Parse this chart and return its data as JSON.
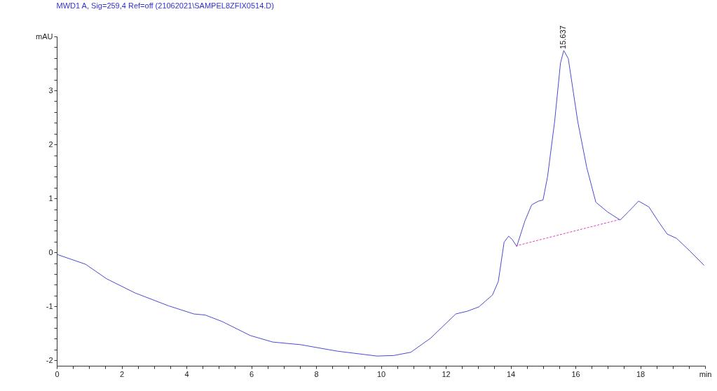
{
  "chart_data": {
    "type": "line",
    "title": "MWD1 A, Sig=259,4 Ref=off (21062021\\SAMPEL8ZFIX0514.D)",
    "xlim": [
      0,
      20
    ],
    "ylim": [
      -2.1,
      4
    ],
    "xticks": [
      0,
      {
        "value": 0.5,
        "label": null
      },
      {
        "value": 1,
        "label": null
      },
      {
        "value": 1.5,
        "label": null
      },
      2,
      {
        "value": 2.5,
        "label": null
      },
      {
        "value": 3,
        "label": null
      },
      {
        "value": 3.5,
        "label": null
      },
      4,
      {
        "value": 4.5,
        "label": null
      },
      {
        "value": 5,
        "label": null
      },
      {
        "value": 5.5,
        "label": null
      },
      6,
      {
        "value": 6.5,
        "label": null
      },
      {
        "value": 7,
        "label": null
      },
      {
        "value": 7.5,
        "label": null
      },
      8,
      {
        "value": 8.5,
        "label": null
      },
      {
        "value": 9,
        "label": null
      },
      {
        "value": 9.5,
        "label": null
      },
      10,
      {
        "value": 10.5,
        "label": null
      },
      {
        "value": 11,
        "label": null
      },
      {
        "value": 11.5,
        "label": null
      },
      12,
      {
        "value": 12.5,
        "label": null
      },
      {
        "value": 13,
        "label": null
      },
      {
        "value": 13.5,
        "label": null
      },
      14,
      {
        "value": 14.5,
        "label": null
      },
      {
        "value": 15,
        "label": null
      },
      {
        "value": 15.5,
        "label": null
      },
      16,
      {
        "value": 16.5,
        "label": null
      },
      {
        "value": 17,
        "label": null
      },
      {
        "value": 17.5,
        "label": null
      },
      18,
      {
        "value": 18.5,
        "label": null
      },
      {
        "value": 19,
        "label": null
      },
      {
        "value": 19.5,
        "label": null
      },
      {
        "value": 20,
        "label": "min"
      }
    ],
    "yticks": [
      -2,
      {
        "value": -1.8,
        "label": null
      },
      {
        "value": -1.6,
        "label": null
      },
      {
        "value": -1.4,
        "label": null
      },
      {
        "value": -1.2,
        "label": null
      },
      -1,
      {
        "value": -0.8,
        "label": null
      },
      {
        "value": -0.6,
        "label": null
      },
      {
        "value": -0.4,
        "label": null
      },
      {
        "value": -0.2,
        "label": null
      },
      0,
      {
        "value": 0.2,
        "label": null
      },
      {
        "value": 0.4,
        "label": null
      },
      {
        "value": 0.6,
        "label": null
      },
      {
        "value": 0.8,
        "label": null
      },
      1,
      {
        "value": 1.2,
        "label": null
      },
      {
        "value": 1.4,
        "label": null
      },
      {
        "value": 1.6,
        "label": null
      },
      {
        "value": 1.8,
        "label": null
      },
      2,
      {
        "value": 2.2,
        "label": null
      },
      {
        "value": 2.4,
        "label": null
      },
      {
        "value": 2.6,
        "label": null
      },
      {
        "value": 2.8,
        "label": null
      },
      3,
      {
        "value": 3.2,
        "label": null
      },
      {
        "value": 3.4,
        "label": null
      },
      {
        "value": 3.6,
        "label": null
      },
      {
        "value": 3.8,
        "label": null
      },
      {
        "value": 4,
        "label": "mAU"
      }
    ],
    "grid": false,
    "series": [
      {
        "color": "#4b4bd0",
        "x": [
          0.02,
          0.89,
          1.54,
          2.41,
          3.45,
          4.23,
          4.58,
          5.1,
          5.97,
          6.66,
          7.53,
          8.66,
          9.88,
          10.39,
          10.92,
          11.53,
          12.31,
          12.66,
          13.02,
          13.44,
          13.62,
          13.8,
          13.94,
          14.05,
          14.19,
          14.44,
          14.65,
          14.86,
          15.0,
          15.14,
          15.36,
          15.54,
          15.64,
          15.78,
          16.07,
          16.35,
          16.63,
          16.99,
          17.38,
          17.63,
          17.95,
          18.27,
          18.55,
          18.83,
          19.12,
          19.54,
          19.97
        ],
        "values": [
          -0.04,
          -0.22,
          -0.49,
          -0.75,
          -0.99,
          -1.14,
          -1.16,
          -1.28,
          -1.54,
          -1.66,
          -1.71,
          -1.83,
          -1.92,
          -1.91,
          -1.85,
          -1.59,
          -1.14,
          -1.09,
          -1.01,
          -0.79,
          -0.54,
          0.19,
          0.3,
          0.24,
          0.11,
          0.58,
          0.88,
          0.95,
          0.97,
          1.4,
          2.43,
          3.51,
          3.74,
          3.59,
          2.43,
          1.57,
          0.93,
          0.75,
          0.6,
          0.75,
          0.95,
          0.84,
          0.58,
          0.34,
          0.26,
          0.02,
          -0.24
        ]
      },
      {
        "type": "line",
        "color": "#e040c0",
        "line_style": "dashed",
        "x": [
          14.16,
          17.37
        ],
        "values": [
          0.12,
          0.61
        ]
      }
    ],
    "annotations": [
      {
        "text": "15.637",
        "x": 15.637,
        "y": 3.74
      }
    ]
  }
}
